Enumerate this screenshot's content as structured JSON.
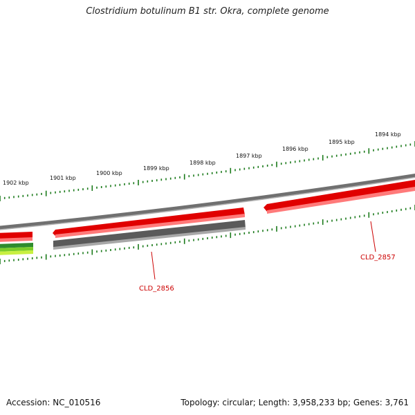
{
  "title": "Clostridium botulinum B1 str. Okra, complete genome",
  "footer": {
    "accession": "Accession: NC_010516",
    "summary": "Topology: circular; Length: 3,958,233 bp; Genes: 3,761"
  },
  "kbp_labels": [
    "1902 kbp",
    "1901 kbp",
    "1900 kbp",
    "1899 kbp",
    "1898 kbp",
    "1897 kbp",
    "1896 kbp",
    "1895 kbp",
    "1894 kbp"
  ],
  "gene_labels": [
    "CLD_2856",
    "CLD_2857"
  ],
  "colors": {
    "tick": "#1a7a1a",
    "backbone": "#8a8a8a",
    "forward_gene": "#e60000",
    "reverse_gene": "#5a5a5a",
    "label": "#cc0000",
    "gc_dark": "#2e8b2e",
    "gc_light": "#b8e830"
  }
}
